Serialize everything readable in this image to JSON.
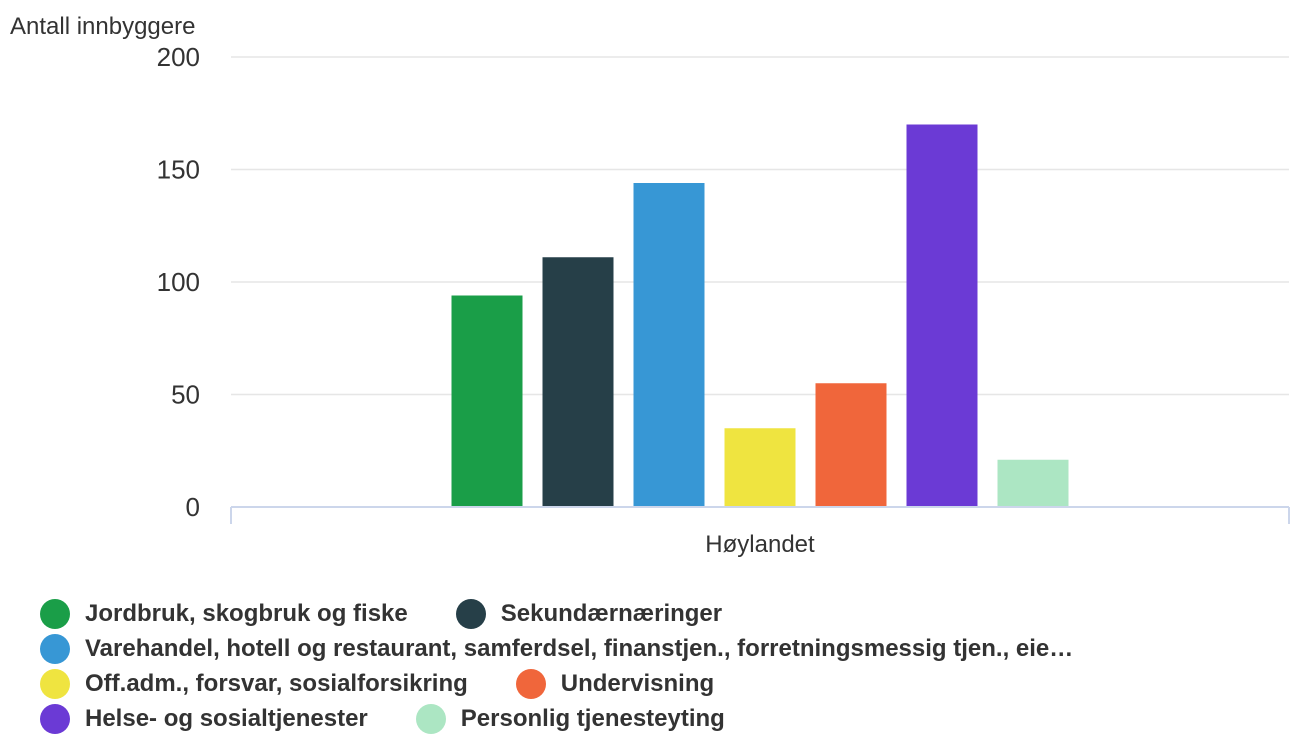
{
  "chart_data": {
    "type": "bar",
    "title": "",
    "ylabel": "Antall innbyggere",
    "xlabel": "",
    "categories": [
      "Høylandet"
    ],
    "ylim": [
      0,
      200
    ],
    "yticks": [
      0,
      50,
      100,
      150,
      200
    ],
    "grid": true,
    "legend_position": "bottom",
    "series": [
      {
        "name": "Jordbruk, skogbruk og fiske",
        "values": [
          94
        ],
        "color": "#1a9e48"
      },
      {
        "name": "Sekundærnæringer",
        "values": [
          111
        ],
        "color": "#263f48"
      },
      {
        "name": "Varehandel, hotell og restaurant, samferdsel, finanstjen., forretningsmessig tjen., eie…",
        "values": [
          144
        ],
        "color": "#3797d5"
      },
      {
        "name": "Off.adm., forsvar, sosialforsikring",
        "values": [
          35
        ],
        "color": "#efe440"
      },
      {
        "name": "Undervisning",
        "values": [
          55
        ],
        "color": "#f0663b"
      },
      {
        "name": "Helse- og sosialtjenester",
        "values": [
          170
        ],
        "color": "#6b3ad5"
      },
      {
        "name": "Personlig tjenesteyting",
        "values": [
          21
        ],
        "color": "#ace6c3"
      }
    ]
  }
}
